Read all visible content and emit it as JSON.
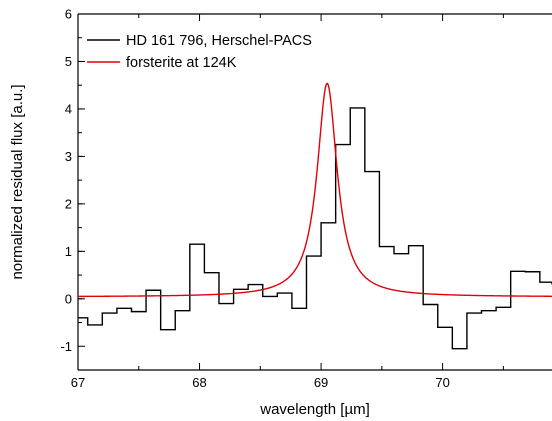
{
  "chart_data": {
    "type": "line",
    "xlabel": "wavelength [µm]",
    "ylabel": "normalized residual flux  [a.u.]",
    "xlim": [
      67,
      70.9
    ],
    "ylim": [
      -1.5,
      6
    ],
    "x_ticks": [
      67,
      68,
      69,
      70
    ],
    "y_ticks": [
      -1,
      0,
      1,
      2,
      3,
      4,
      5,
      6
    ],
    "legend_position": "top-left",
    "grid": false,
    "series": [
      {
        "name": "HD 161 796, Herschel-PACS",
        "style": "step",
        "color": "#000000",
        "edges": [
          67.0,
          67.08,
          67.2,
          67.32,
          67.44,
          67.56,
          67.68,
          67.8,
          67.92,
          68.04,
          68.16,
          68.28,
          68.4,
          68.52,
          68.64,
          68.76,
          68.88,
          69.0,
          69.12,
          69.24,
          69.36,
          69.48,
          69.6,
          69.72,
          69.84,
          69.96,
          70.08,
          70.2,
          70.32,
          70.44,
          70.56,
          70.68,
          70.8,
          70.9
        ],
        "values": [
          -0.4,
          -0.55,
          -0.3,
          -0.2,
          -0.27,
          0.18,
          -0.65,
          -0.25,
          1.15,
          0.55,
          -0.1,
          0.2,
          0.3,
          0.05,
          0.12,
          -0.2,
          0.9,
          1.6,
          3.25,
          4.02,
          2.68,
          1.1,
          0.95,
          1.12,
          -0.12,
          -0.6,
          -1.05,
          -0.3,
          -0.25,
          -0.18,
          0.58,
          0.57,
          0.35,
          0.3
        ]
      },
      {
        "name": "forsterite at 124K",
        "style": "line",
        "color": "#e0000a",
        "profile": "lorentzian",
        "center": 69.05,
        "fwhm": 0.2,
        "amplitude": 4.5,
        "baseline": 0.04,
        "x_range": [
          67,
          70.9
        ]
      }
    ]
  }
}
